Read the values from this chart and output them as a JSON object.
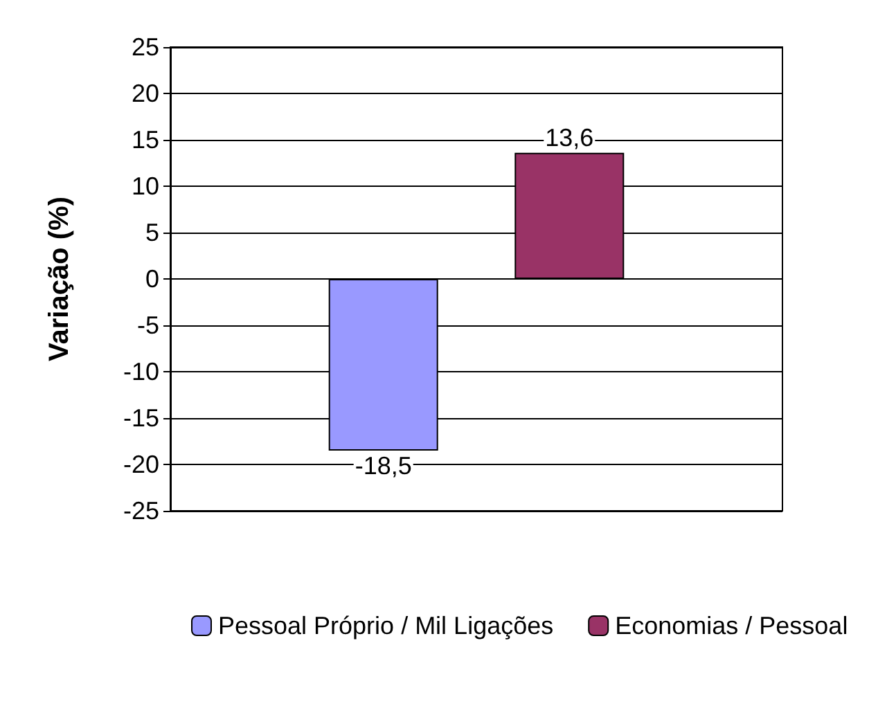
{
  "chart_data": {
    "type": "bar",
    "ylabel": "Variação (%)",
    "categories": [
      null
    ],
    "series": [
      {
        "name": "Pessoal Próprio / Mil Ligações",
        "color": "#9999ff",
        "values": [
          -18.5
        ],
        "value_labels": [
          "-18,5"
        ]
      },
      {
        "name": "Economias / Pessoal",
        "color": "#993366",
        "values": [
          13.6
        ],
        "value_labels": [
          "13,6"
        ]
      }
    ],
    "ylim": [
      -25,
      25
    ],
    "yticks": [
      -25,
      -20,
      -15,
      -10,
      -5,
      0,
      5,
      10,
      15,
      20,
      25
    ],
    "grid": "y",
    "legend": "bottom"
  }
}
